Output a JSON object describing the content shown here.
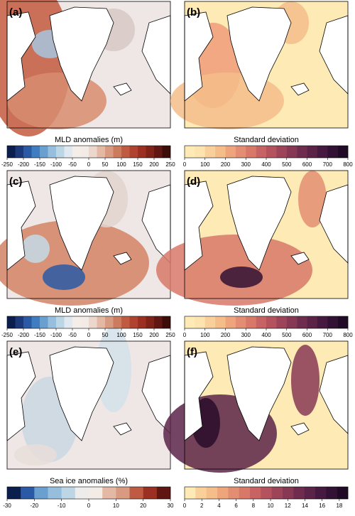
{
  "panels": [
    {
      "label": "(a)"
    },
    {
      "label": "(b)"
    },
    {
      "label": "(c)"
    },
    {
      "label": "(d)"
    },
    {
      "label": "(e)"
    },
    {
      "label": "(f)"
    }
  ],
  "colorbars": [
    {
      "title": "MLD anomalies (m)",
      "lim": [
        -250,
        250
      ],
      "ticks": [
        -250,
        -200,
        -150,
        -100,
        -50,
        0,
        50,
        100,
        150,
        200,
        250
      ],
      "colors": [
        "#0b1f4f",
        "#1c3a7a",
        "#2a5aa5",
        "#3f7dc0",
        "#6aa0cf",
        "#97bfdc",
        "#bcd6e6",
        "#dfe9ef",
        "#f3eeea",
        "#f2ebe6",
        "#edd7cc",
        "#e3b9a6",
        "#d89a80",
        "#cd7b5e",
        "#bf5b43",
        "#b0432f",
        "#9b3022",
        "#7f2218",
        "#601711",
        "#3d0d0a"
      ]
    },
    {
      "title": "Standard deviation",
      "lim": [
        0,
        800
      ],
      "ticks": [
        0,
        100,
        200,
        300,
        400,
        500,
        600,
        700,
        800
      ],
      "colors": [
        "#fdeab4",
        "#fde3ad",
        "#f9d09a",
        "#f4bd8a",
        "#eea57c",
        "#e38e72",
        "#d77869",
        "#c76363",
        "#b4525e",
        "#9d4459",
        "#873854",
        "#702c4e",
        "#5b2348",
        "#461a40",
        "#321234",
        "#210a26"
      ]
    },
    {
      "title": "MLD anomalies (m)",
      "lim": [
        -250,
        250
      ],
      "ticks": [
        -250,
        -200,
        -150,
        -100,
        -50,
        0,
        50,
        100,
        150,
        200,
        250
      ],
      "colors": [
        "#0b1f4f",
        "#1c3a7a",
        "#2a5aa5",
        "#3f7dc0",
        "#6aa0cf",
        "#97bfdc",
        "#bcd6e6",
        "#dfe9ef",
        "#f3eeea",
        "#f2ebe6",
        "#edd7cc",
        "#e3b9a6",
        "#d89a80",
        "#cd7b5e",
        "#bf5b43",
        "#b0432f",
        "#9b3022",
        "#7f2218",
        "#601711",
        "#3d0d0a"
      ]
    },
    {
      "title": "Standard deviation",
      "lim": [
        0,
        800
      ],
      "ticks": [
        0,
        100,
        200,
        300,
        400,
        500,
        600,
        700,
        800
      ],
      "colors": [
        "#fdeab4",
        "#fde3ad",
        "#f9d09a",
        "#f4bd8a",
        "#eea57c",
        "#e38e72",
        "#d77869",
        "#c76363",
        "#b4525e",
        "#9d4459",
        "#873854",
        "#702c4e",
        "#5b2348",
        "#461a40",
        "#321234",
        "#210a26"
      ]
    },
    {
      "title": "Sea ice anomalies (%)",
      "lim": [
        -30,
        30
      ],
      "ticks": [
        -30,
        -20,
        -10,
        0,
        10,
        20,
        30
      ],
      "colors": [
        "#0b1f4f",
        "#2a5aa5",
        "#6aa0cf",
        "#97bfdc",
        "#bcd6e6",
        "#eeeceb",
        "#f2ebe6",
        "#e3b9a6",
        "#d89a80",
        "#bf5b43",
        "#9b3022",
        "#601711"
      ]
    },
    {
      "title": "Standard deviation",
      "lim": [
        0,
        19
      ],
      "ticks": [
        0,
        2,
        4,
        6,
        8,
        10,
        12,
        14,
        16,
        18
      ],
      "colors": [
        "#fdeab4",
        "#f9d09a",
        "#f4bd8a",
        "#eea57c",
        "#e38e72",
        "#d77869",
        "#c76363",
        "#b4525e",
        "#9d4459",
        "#873854",
        "#702c4e",
        "#5b2348",
        "#461a40",
        "#321234",
        "#210a26"
      ]
    }
  ]
}
